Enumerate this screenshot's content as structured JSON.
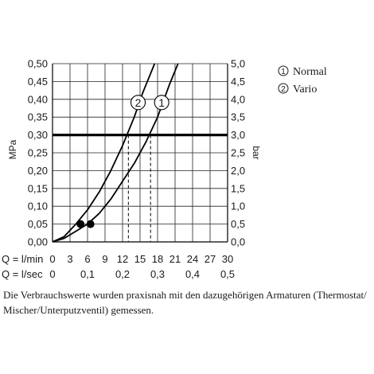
{
  "chart_data": {
    "type": "line",
    "y_left": {
      "label": "MPa",
      "range": [
        0,
        0.5
      ],
      "ticks": [
        "0,00",
        "0,05",
        "0,10",
        "0,15",
        "0,20",
        "0,25",
        "0,30",
        "0,35",
        "0,40",
        "0,45",
        "0,50"
      ]
    },
    "y_right": {
      "label": "bar",
      "range": [
        0,
        5
      ],
      "ticks": [
        "0,0",
        "0,5",
        "1,0",
        "1,5",
        "2,0",
        "2,5",
        "3,0",
        "3,5",
        "4,0",
        "4,5",
        "5,0"
      ]
    },
    "x_axes": [
      {
        "label": "Q = l/min",
        "range": [
          0,
          30
        ],
        "ticks": [
          "0",
          "3",
          "6",
          "9",
          "12",
          "15",
          "18",
          "21",
          "24",
          "27",
          "30"
        ]
      },
      {
        "label": "Q = l/sec",
        "range": [
          0,
          0.5
        ],
        "ticks": [
          "0",
          "0,1",
          "0,2",
          "0,3",
          "0,4",
          "0,5"
        ]
      }
    ],
    "grid": true,
    "series": [
      {
        "name": "Normal",
        "marker": "1",
        "x": [
          0,
          2,
          4,
          6,
          8,
          10,
          12,
          14,
          16,
          18,
          20,
          21.5
        ],
        "y": [
          0,
          0.01,
          0.03,
          0.05,
          0.08,
          0.12,
          0.17,
          0.22,
          0.28,
          0.35,
          0.44,
          0.5
        ]
      },
      {
        "name": "Vario",
        "marker": "2",
        "x": [
          0,
          2,
          4,
          6,
          8,
          10,
          12,
          14,
          15.5,
          17.5
        ],
        "y": [
          0,
          0.015,
          0.05,
          0.09,
          0.14,
          0.2,
          0.27,
          0.35,
          0.42,
          0.5
        ]
      }
    ],
    "reference_line": {
      "y": 0.3
    },
    "dashed_drops": [
      13,
      16.8
    ],
    "points": [
      {
        "x": 4.8,
        "y": 0.05
      },
      {
        "x": 6.5,
        "y": 0.05
      }
    ],
    "legend": {
      "placement": "top-right",
      "items": [
        {
          "marker": "1",
          "text": "Normal"
        },
        {
          "marker": "2",
          "text": "Vario"
        }
      ]
    }
  },
  "caption": "Die Verbrauchswerte wurden praxisnah mit den dazugehörigen Armaturen (Thermostat/ Mischer/Unterputzventil) gemessen."
}
